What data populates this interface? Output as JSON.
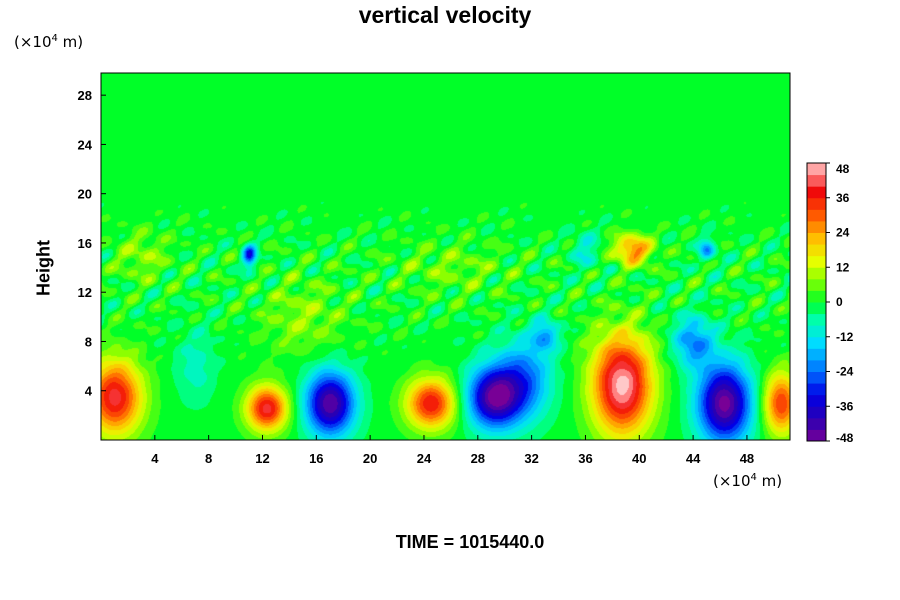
{
  "chart_data": {
    "type": "heatmap",
    "title": "vertical velocity",
    "ylabel": "Height",
    "xlabel": "",
    "x_unit": {
      "pre": "(×10",
      "exp": "4",
      "post": " m)"
    },
    "y_unit": {
      "pre": "(×10",
      "exp": "4",
      "post": " m)"
    },
    "x_ticks": [
      4,
      8,
      12,
      16,
      20,
      24,
      28,
      32,
      36,
      40,
      44,
      48
    ],
    "y_ticks": [
      4,
      8,
      12,
      16,
      20,
      24,
      28
    ],
    "xlim": [
      0,
      51.2
    ],
    "ylim": [
      0,
      29.8
    ],
    "colorbar": {
      "ticks": [
        48,
        36,
        24,
        12,
        0,
        -12,
        -24,
        -36,
        -48
      ],
      "range": [
        -48,
        48
      ]
    },
    "features": [
      {
        "x": 1.0,
        "y": 3.5,
        "value": 40,
        "sx": 2.0,
        "sy": 3.0
      },
      {
        "x": 12.3,
        "y": 2.6,
        "value": 40,
        "sx": 1.5,
        "sy": 1.8
      },
      {
        "x": 17.0,
        "y": 3.0,
        "value": -46,
        "sx": 1.8,
        "sy": 2.6
      },
      {
        "x": 24.5,
        "y": 3.0,
        "value": 38,
        "sx": 1.8,
        "sy": 2.0
      },
      {
        "x": 29.2,
        "y": 3.5,
        "value": -46,
        "sx": 2.0,
        "sy": 2.5
      },
      {
        "x": 31.5,
        "y": 5.0,
        "value": -22,
        "sx": 2.0,
        "sy": 3.2
      },
      {
        "x": 38.7,
        "y": 4.5,
        "value": 48,
        "sx": 2.2,
        "sy": 4.0
      },
      {
        "x": 44.0,
        "y": 8.0,
        "value": -22,
        "sx": 1.5,
        "sy": 2.0
      },
      {
        "x": 46.3,
        "y": 3.0,
        "value": -48,
        "sx": 2.0,
        "sy": 3.2
      },
      {
        "x": 50.5,
        "y": 3.0,
        "value": 34,
        "sx": 1.3,
        "sy": 2.5
      },
      {
        "x": 39.5,
        "y": 15.5,
        "value": 28,
        "sx": 1.4,
        "sy": 1.2
      },
      {
        "x": 11.0,
        "y": 15.0,
        "value": -30,
        "sx": 0.5,
        "sy": 0.9
      },
      {
        "x": 45.0,
        "y": 15.5,
        "value": -20,
        "sx": 0.6,
        "sy": 0.9
      },
      {
        "x": 33.0,
        "y": 8.5,
        "value": -18,
        "sx": 1.0,
        "sy": 1.2
      },
      {
        "x": 15.0,
        "y": 10.0,
        "value": 8,
        "sx": 3.0,
        "sy": 3.0
      },
      {
        "x": 3.0,
        "y": 15.0,
        "value": 8,
        "sx": 2.0,
        "sy": 2.0
      },
      {
        "x": 26.0,
        "y": 14.0,
        "value": 6,
        "sx": 4.0,
        "sy": 2.0
      },
      {
        "x": 36.0,
        "y": 15.5,
        "value": -10,
        "sx": 1.0,
        "sy": 1.5
      },
      {
        "x": 7.0,
        "y": 6.0,
        "value": -8,
        "sx": 1.5,
        "sy": 3.0
      }
    ]
  },
  "footer": {
    "time_label": "TIME = 1015440.0"
  }
}
